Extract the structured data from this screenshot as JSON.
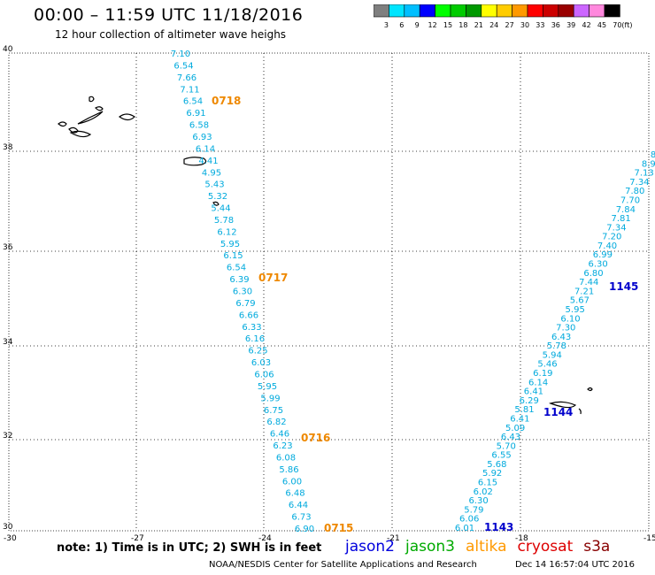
{
  "header": {
    "title": "00:00 – 11:59 UTC 11/18/2016",
    "subtitle": "12 hour collection of altimeter wave heighs"
  },
  "colorbar": {
    "ticks": [
      "3",
      "6",
      "9",
      "12",
      "15",
      "18",
      "21",
      "24",
      "27",
      "30",
      "33",
      "36",
      "39",
      "42",
      "45",
      "70"
    ],
    "unit": "(ft)",
    "colors": [
      "#7f7f7f",
      "#00e5ff",
      "#00bfff",
      "#0000ff",
      "#00ff00",
      "#00cc00",
      "#009900",
      "#ffff00",
      "#ffcc00",
      "#ff9900",
      "#ff0000",
      "#cc0000",
      "#990000",
      "#cc66ff",
      "#ff88dd",
      "#000000"
    ]
  },
  "axes": {
    "lat_labels": [
      "40",
      "38",
      "36",
      "34",
      "32",
      "30"
    ],
    "lon_labels": [
      "-30",
      "-27",
      "-24",
      "-21",
      "-18",
      "-15"
    ]
  },
  "tracks": [
    {
      "id": "left-track",
      "color": "#00aadd",
      "values": [
        "7.10",
        "6.54",
        "7.66",
        "7.11",
        "6.54",
        "6.91",
        "6.58",
        "6.93",
        "6.14",
        "4.41",
        "4.95",
        "5.43",
        "5.32",
        "5.44",
        "5.78",
        "6.12",
        "5.95",
        "6.15",
        "6.54",
        "6.39",
        "6.30",
        "6.79",
        "6.66",
        "6.33",
        "6.16",
        "6.25",
        "6.03",
        "6.06",
        "5.95",
        "5.99",
        "6.75",
        "6.82",
        "6.46",
        "6.23",
        "6.08",
        "5.86",
        "6.00",
        "6.48",
        "6.44",
        "6.73",
        "6.90"
      ]
    },
    {
      "id": "right-track",
      "color": "#00aadd",
      "values": [
        "6.01",
        "6.06",
        "5.79",
        "6.30",
        "6.02",
        "6.15",
        "5.92",
        "5.68",
        "6.55",
        "5.70",
        "6.43",
        "5.09",
        "6.41",
        "5.81",
        "6.29",
        "6.41",
        "6.14",
        "6.19",
        "5.46",
        "5.94",
        "5.78",
        "6.43",
        "7.30",
        "6.10",
        "5.95",
        "5.67",
        "7.21",
        "7.44",
        "6.80",
        "6.30",
        "6.99",
        "7.40",
        "7.20",
        "7.34",
        "7.81",
        "7.84",
        "7.70",
        "7.80",
        "7.34",
        "7.13",
        "8.9",
        "8"
      ]
    }
  ],
  "time_labels": [
    {
      "text": "0718",
      "color": "#ee8800"
    },
    {
      "text": "0717",
      "color": "#ee8800"
    },
    {
      "text": "0716",
      "color": "#ee8800"
    },
    {
      "text": "0715",
      "color": "#ee8800"
    },
    {
      "text": "1145",
      "color": "#0000cc"
    },
    {
      "text": "1144",
      "color": "#0000cc"
    },
    {
      "text": "1143",
      "color": "#0000cc"
    }
  ],
  "footer": {
    "note": "note:  1) Time is in UTC;  2) SWH is in feet",
    "satellites": [
      {
        "name": "jason2",
        "color": "#0000dd"
      },
      {
        "name": "jason3",
        "color": "#00aa00"
      },
      {
        "name": "altika",
        "color": "#ff9900"
      },
      {
        "name": "cryosat",
        "color": "#dd0000"
      },
      {
        "name": "s3a",
        "color": "#880000"
      }
    ],
    "credit": "NOAA/NESDIS Center for Satellite Applications and Research",
    "date": "Dec 14 16:57:04 UTC 2016"
  }
}
